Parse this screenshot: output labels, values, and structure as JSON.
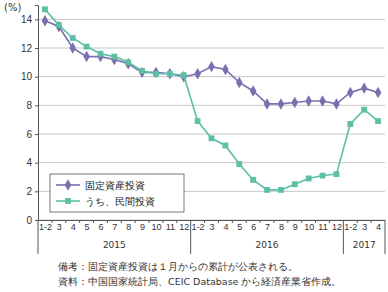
{
  "chart_data": {
    "type": "line",
    "y_label": "(%)",
    "categories": [
      "1-2",
      "3",
      "4",
      "5",
      "6",
      "7",
      "8",
      "9",
      "10",
      "11",
      "12",
      "1-2",
      "3",
      "4",
      "5",
      "6",
      "7",
      "8",
      "9",
      "10",
      "11",
      "12",
      "1-2",
      "3",
      "4"
    ],
    "groups": [
      {
        "label": "2015",
        "size": 11
      },
      {
        "label": "2016",
        "size": 11
      },
      {
        "label": "2017",
        "size": 3
      }
    ],
    "series": [
      {
        "name": "固定資産投資",
        "color": "#7b6fb0",
        "marker": "diamond",
        "values": [
          13.9,
          13.5,
          12.0,
          11.4,
          11.4,
          11.2,
          10.9,
          10.3,
          10.3,
          10.2,
          10.0,
          10.2,
          10.7,
          10.5,
          9.6,
          9.0,
          8.1,
          8.1,
          8.2,
          8.3,
          8.3,
          8.1,
          8.9,
          9.2,
          8.9
        ]
      },
      {
        "name": "うち、民間投資",
        "color": "#5cbfa6",
        "marker": "square",
        "values": [
          14.7,
          13.6,
          12.7,
          12.1,
          11.6,
          11.4,
          11.0,
          10.4,
          10.2,
          10.2,
          10.1,
          6.9,
          5.7,
          5.2,
          3.9,
          2.8,
          2.1,
          2.1,
          2.5,
          2.9,
          3.1,
          3.2,
          6.7,
          7.7,
          6.9
        ]
      }
    ],
    "ylim": [
      0,
      15
    ],
    "yticks": [
      0,
      2,
      4,
      6,
      8,
      10,
      12,
      14
    ],
    "grid": true,
    "legend": "lower left",
    "notes": [
      "備考：固定資産投資は１月からの累計が公表される。",
      "資料：中国国家統計局、CEIC Database から経済産業省作成。"
    ]
  }
}
